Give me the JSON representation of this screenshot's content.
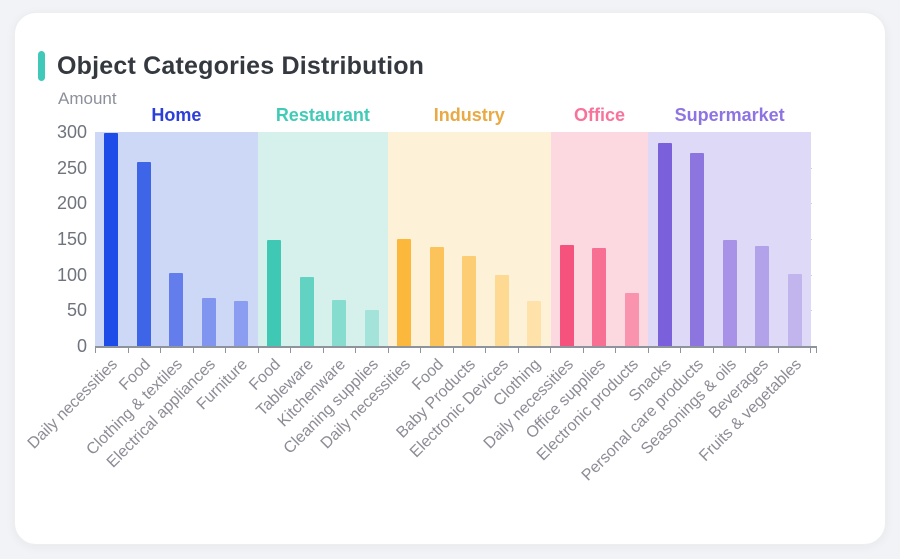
{
  "page": {
    "background_color": "#f2f3f6"
  },
  "header": {
    "title": "Object Categories Distribution",
    "accent_color": "#40c8b8"
  },
  "chart_data": {
    "type": "bar",
    "title": "Object Categories Distribution",
    "ylabel": "Amount",
    "xlabel": "",
    "ylim": [
      0,
      300
    ],
    "yticks": [
      300,
      250,
      200,
      150,
      100,
      50,
      0
    ],
    "grid": false,
    "legend_position": "none",
    "x_label_rotation_deg": 45,
    "axis_color": "#8f949c",
    "y_tick_label_color": "#6f737c",
    "x_label_color": "#8c8c96",
    "groups": [
      {
        "name": "Home",
        "label_color": "#2c3fd9",
        "band_color": "#cdd8f6",
        "categories": [
          "Daily necessities",
          "Food",
          "Clothing & textiles",
          "Electrical appliances",
          "Furniture"
        ],
        "values": [
          298,
          258,
          102,
          68,
          63
        ],
        "bar_colors": [
          "#1d4ce8",
          "#3e64e8",
          "#637eec",
          "#8095ef",
          "#8a9df0"
        ]
      },
      {
        "name": "Restaurant",
        "label_color": "#41cbb7",
        "band_color": "#d6f0ec",
        "categories": [
          "Food",
          "Tableware",
          "Kitchenware",
          "Cleaning supplies"
        ],
        "values": [
          148,
          97,
          64,
          50
        ],
        "bar_colors": [
          "#3fc9b5",
          "#62d2c2",
          "#87dcd0",
          "#a3e3d9"
        ]
      },
      {
        "name": "Industry",
        "label_color": "#e9a944",
        "band_color": "#fdf1d7",
        "categories": [
          "Daily necessities",
          "Food",
          "Baby Products",
          "Electronic Devices",
          "Clothing"
        ],
        "values": [
          150,
          139,
          126,
          99,
          63
        ],
        "bar_colors": [
          "#fcb83c",
          "#fcc35a",
          "#fdcd73",
          "#fdd992",
          "#fee2a9"
        ]
      },
      {
        "name": "Office",
        "label_color": "#f8739b",
        "band_color": "#fcd8e1",
        "categories": [
          "Daily necessities",
          "Office supplies",
          "Electronic products"
        ],
        "values": [
          142,
          138,
          75
        ],
        "bar_colors": [
          "#f5527d",
          "#f77093",
          "#fa93ae"
        ]
      },
      {
        "name": "Supermarket",
        "label_color": "#8e74e3",
        "band_color": "#ded9f6",
        "categories": [
          "Snacks",
          "Personal care products",
          "Seasonings & oils",
          "Beverages",
          "Fruits & vegetables"
        ],
        "values": [
          285,
          271,
          148,
          140,
          101
        ],
        "bar_colors": [
          "#7a60da",
          "#8d75e0",
          "#a792e7",
          "#b2a2ea",
          "#c2b5ee"
        ]
      }
    ]
  }
}
